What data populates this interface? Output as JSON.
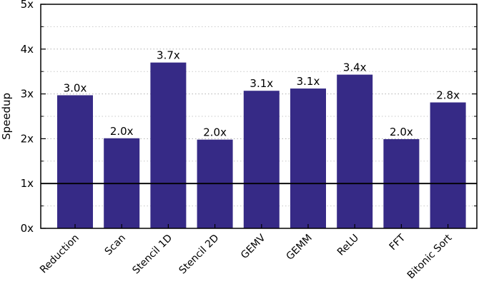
{
  "chart_data": {
    "type": "bar",
    "title": "",
    "xlabel": "",
    "ylabel": "Speedup",
    "ylim": [
      0,
      5
    ],
    "yticks": [
      0,
      1,
      2,
      3,
      4,
      5
    ],
    "ytick_labels": [
      "0x",
      "1x",
      "2x",
      "3x",
      "4x",
      "5x"
    ],
    "categories": [
      "Reduction",
      "Scan",
      "Stencil 1D",
      "Stencil 2D",
      "GEMV",
      "GEMM",
      "ReLU",
      "FFT",
      "Bitonic Sort"
    ],
    "values": [
      2.97,
      2.01,
      3.7,
      1.98,
      3.07,
      3.12,
      3.43,
      1.99,
      2.81
    ],
    "data_labels": [
      "3.0x",
      "2.0x",
      "3.7x",
      "2.0x",
      "3.1x",
      "3.1x",
      "3.4x",
      "2.0x",
      "2.8x"
    ],
    "reference_line": 1,
    "bar_color": "#362a86",
    "grid": "dotted horizontal",
    "legend": "none"
  }
}
